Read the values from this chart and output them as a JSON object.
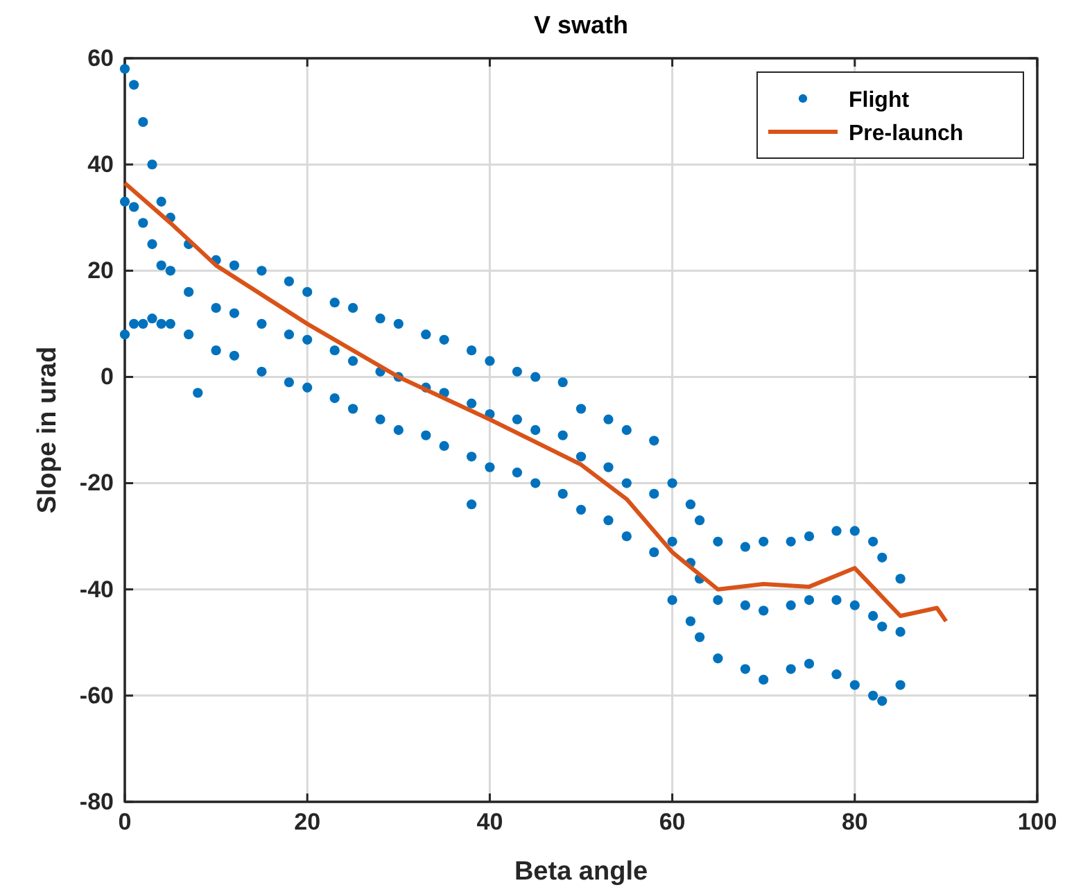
{
  "chart_data": {
    "type": "scatter",
    "title": "V swath",
    "xlabel": "Beta angle",
    "ylabel": "Slope in urad",
    "xlim": [
      0,
      100
    ],
    "xticks": [
      0,
      20,
      40,
      60,
      80,
      100
    ],
    "ylim": [
      -80,
      60
    ],
    "yticks": [
      -80,
      -60,
      -40,
      -20,
      0,
      20,
      40,
      60
    ],
    "grid": true,
    "legend": "top right",
    "marker": "circle",
    "series": [
      {
        "name": "Flight",
        "color": "#0072bd",
        "x": [
          0,
          1,
          2,
          3,
          4,
          5,
          7,
          10,
          12,
          15,
          18,
          20,
          23,
          25,
          28,
          30,
          33,
          35,
          38,
          40,
          43,
          45,
          48,
          50,
          53,
          55,
          58,
          60,
          62,
          63,
          65,
          68,
          70,
          73,
          75,
          78,
          80,
          82,
          83,
          85,
          0,
          1,
          2,
          3,
          4,
          5,
          7,
          10,
          12,
          15,
          18,
          20,
          23,
          25,
          28,
          30,
          33,
          35,
          38,
          40,
          43,
          45,
          48,
          50,
          53,
          55,
          58,
          60,
          62,
          63,
          65,
          68,
          70,
          73,
          75,
          78,
          80,
          82,
          83,
          85,
          0,
          1,
          2,
          3,
          4,
          5,
          7,
          10,
          12,
          15,
          18,
          20,
          23,
          25,
          28,
          30,
          33,
          35,
          38,
          40,
          43,
          45,
          48,
          50,
          53,
          55,
          58,
          60,
          62,
          63,
          65,
          68,
          70,
          73,
          75,
          78,
          80,
          82,
          83,
          85,
          8,
          38
        ],
        "values": [
          58,
          55,
          48,
          40,
          33,
          30,
          25,
          22,
          21,
          20,
          18,
          16,
          14,
          13,
          11,
          10,
          8,
          7,
          5,
          3,
          1,
          0,
          -1,
          -6,
          -8,
          -10,
          -12,
          -20,
          -24,
          -27,
          -31,
          -32,
          -31,
          -31,
          -30,
          -29,
          -29,
          -31,
          -34,
          -38,
          33,
          32,
          29,
          25,
          21,
          20,
          16,
          13,
          12,
          10,
          8,
          7,
          5,
          3,
          1,
          0,
          -2,
          -3,
          -5,
          -7,
          -8,
          -10,
          -11,
          -15,
          -17,
          -20,
          -22,
          -31,
          -35,
          -38,
          -42,
          -43,
          -44,
          -43,
          -42,
          -42,
          -43,
          -45,
          -47,
          -48,
          8,
          10,
          10,
          11,
          10,
          10,
          8,
          5,
          4,
          1,
          -1,
          -2,
          -4,
          -6,
          -8,
          -10,
          -11,
          -13,
          -15,
          -17,
          -18,
          -20,
          -22,
          -25,
          -27,
          -30,
          -33,
          -42,
          -46,
          -49,
          -53,
          -55,
          -57,
          -55,
          -54,
          -56,
          -58,
          -60,
          -61,
          -58,
          -3,
          -24
        ]
      },
      {
        "name": "Pre-launch",
        "color": "#d95319",
        "type": "line",
        "marker": "none",
        "x": [
          0,
          5,
          10,
          20,
          30,
          40,
          50,
          55,
          60,
          65,
          70,
          75,
          80,
          85,
          89,
          90
        ],
        "values": [
          36.5,
          29,
          21,
          10,
          0,
          -8,
          -16.5,
          -23,
          -33,
          -40,
          -39,
          -39.5,
          -36,
          -45,
          -43.5,
          -46
        ]
      }
    ]
  }
}
